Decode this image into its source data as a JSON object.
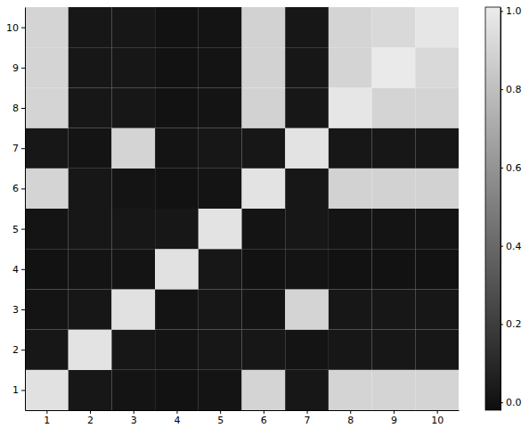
{
  "chart_data": {
    "type": "heatmap",
    "x": [
      1,
      2,
      3,
      4,
      5,
      6,
      7,
      8,
      9,
      10
    ],
    "y": [
      1,
      2,
      3,
      4,
      5,
      6,
      7,
      8,
      9,
      10
    ],
    "z": [
      [
        0.96,
        0.02,
        0.01,
        0.0,
        0.01,
        0.9,
        0.02,
        0.9,
        0.9,
        0.9
      ],
      [
        0.02,
        0.97,
        0.02,
        0.01,
        0.02,
        0.02,
        0.01,
        0.02,
        0.02,
        0.02
      ],
      [
        0.01,
        0.02,
        0.96,
        0.01,
        0.02,
        0.01,
        0.9,
        0.02,
        0.02,
        0.02
      ],
      [
        0.0,
        0.01,
        0.01,
        0.96,
        0.02,
        0.0,
        0.01,
        0.0,
        0.0,
        0.0
      ],
      [
        0.01,
        0.02,
        0.02,
        0.02,
        0.97,
        0.01,
        0.02,
        0.01,
        0.01,
        0.01
      ],
      [
        0.9,
        0.02,
        0.01,
        0.0,
        0.01,
        0.97,
        0.02,
        0.89,
        0.89,
        0.89
      ],
      [
        0.02,
        0.01,
        0.9,
        0.01,
        0.02,
        0.02,
        0.97,
        0.02,
        0.02,
        0.02
      ],
      [
        0.9,
        0.02,
        0.02,
        0.0,
        0.01,
        0.89,
        0.02,
        0.98,
        0.9,
        0.9
      ],
      [
        0.9,
        0.02,
        0.02,
        0.0,
        0.01,
        0.89,
        0.02,
        0.9,
        1.0,
        0.92
      ],
      [
        0.9,
        0.02,
        0.02,
        0.0,
        0.01,
        0.89,
        0.02,
        0.9,
        0.92,
        0.98
      ]
    ],
    "xlim": [
      0.5,
      10.5
    ],
    "ylim": [
      0.5,
      10.5
    ],
    "xticks": [
      1,
      2,
      3,
      4,
      5,
      6,
      7,
      8,
      9,
      10
    ],
    "yticks": [
      1,
      2,
      3,
      4,
      5,
      6,
      7,
      8,
      9,
      10
    ],
    "color_range": [
      -0.02,
      1.01
    ],
    "color_ticks": [
      {
        "value": 0,
        "label": "0.0"
      },
      {
        "value": 0.2,
        "label": "0.2"
      },
      {
        "value": 0.4,
        "label": "0.4"
      },
      {
        "value": 0.6,
        "label": "0.6"
      },
      {
        "value": 0.8,
        "label": "0.8"
      },
      {
        "value": 1,
        "label": "1.0"
      }
    ]
  }
}
